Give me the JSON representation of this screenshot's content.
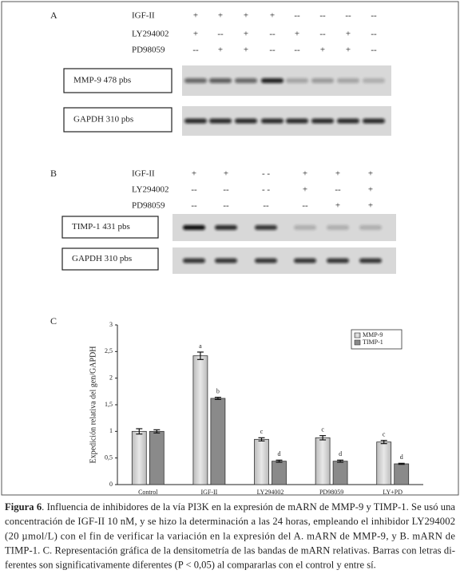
{
  "panel_a": {
    "label": "A",
    "rows": [
      {
        "name": "IGF-II",
        "marks": [
          "+",
          "+",
          "+",
          "+",
          "--",
          "--",
          "--",
          "--"
        ]
      },
      {
        "name": "LY294002",
        "marks": [
          "+",
          "--",
          "+",
          "--",
          "+",
          "--",
          "+",
          "--"
        ]
      },
      {
        "name": "PD98059",
        "marks": [
          "--",
          "+",
          "+",
          "--",
          "--",
          "+",
          "+",
          "--"
        ]
      }
    ],
    "genes": [
      "MMP-9 478 pbs",
      "GAPDH 310 pbs"
    ]
  },
  "panel_b": {
    "label": "B",
    "rows": [
      {
        "name": "IGF-II",
        "marks": [
          "+",
          "+",
          "- -",
          "+",
          "+",
          "+"
        ]
      },
      {
        "name": "LY294002",
        "marks": [
          "--",
          "--",
          "- -",
          "+",
          "--",
          "+"
        ]
      },
      {
        "name": "PD98059",
        "marks": [
          "--",
          "--",
          "--",
          "--",
          "+",
          "+"
        ]
      }
    ],
    "genes": [
      "TIMP-1 431 pbs",
      "GAPDH 310 pbs"
    ]
  },
  "chart_data": {
    "type": "bar",
    "label": "C",
    "y_label": "Expedición relativa del gen/GAPDH",
    "categories": [
      "Control",
      "IGF-II",
      "LY294002",
      "PD98059",
      "LY+PD"
    ],
    "series": [
      {
        "name": "MMP-9",
        "color": "#e8e8e8",
        "values": [
          1,
          2.42,
          0.85,
          0.88,
          0.8
        ],
        "errors": [
          0.05,
          0.07,
          0.03,
          0.04,
          0.03
        ],
        "letters": [
          null,
          "a",
          "c",
          "c",
          "c"
        ]
      },
      {
        "name": "TIMP-1",
        "color": "#8a8a8a",
        "values": [
          1,
          1.62,
          0.44,
          0.44,
          0.39
        ],
        "errors": [
          0.03,
          0.02,
          0.02,
          0.02,
          0.01
        ],
        "letters": [
          null,
          "b",
          "d",
          "d",
          "d"
        ]
      }
    ],
    "ylim": [
      0,
      3
    ],
    "yticks": [
      0,
      {
        "value": 0.5,
        "label": "0,5"
      },
      1,
      {
        "value": 1.5,
        "label": "1,5"
      },
      2,
      {
        "value": 2.5,
        "label": "2,5"
      },
      3
    ],
    "legend": "top-right"
  },
  "caption": {
    "label": "Figura 6",
    "lines": [
      ". Influencia de inhibidores de la vía PI3K en la expresión de mARN de MMP-9 y TIMP-1. Se usó una",
      "concentración de IGF-II 10 nM, y se hizo la determinación a las 24 horas, empleando el inhibidor LY294002",
      "(20 µmol/L) con el fin de verificar la variación en la expresión del A. mARN de MMP-9, y B. mARN de",
      "TIMP-1. C. Representación gráfica de la densitometría de las bandas de mARN relativas. Barras con letras di-",
      "ferentes son significativamente diferentes (P < 0,05) al compararlas con el control y entre sí."
    ]
  }
}
